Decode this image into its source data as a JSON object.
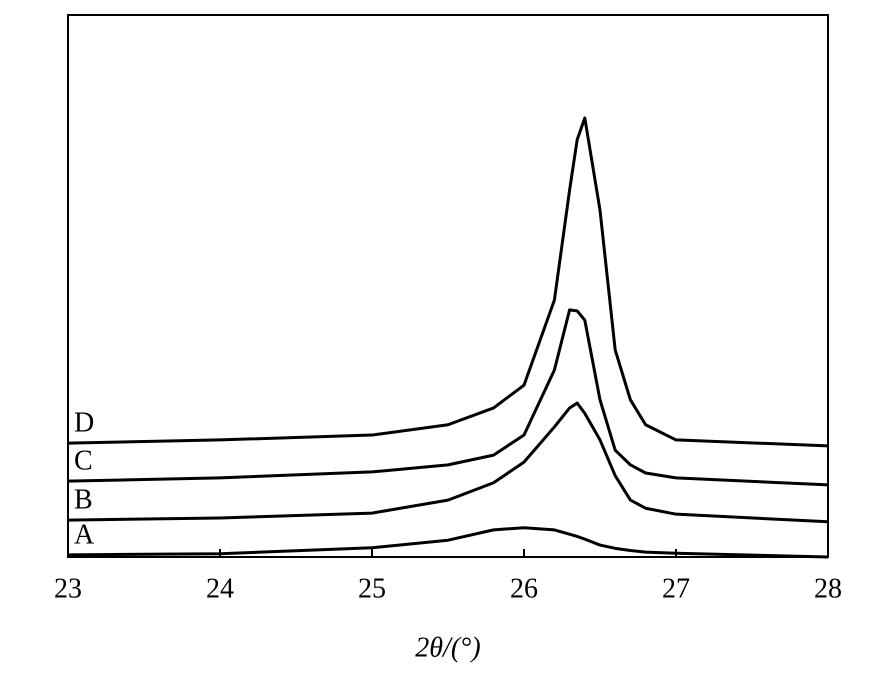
{
  "chart_data": {
    "type": "line",
    "x_label": "2θ/(°)",
    "x": [
      23,
      24,
      25,
      25.5,
      25.8,
      26,
      26.2,
      26.3,
      26.35,
      26.4,
      26.5,
      26.6,
      26.7,
      26.8,
      27,
      28
    ],
    "series": [
      {
        "name": "A",
        "color": "#000000",
        "values": [
          0.4,
          0.6,
          1.7,
          3.1,
          5,
          5.4,
          5,
          4.2,
          3.8,
          3.3,
          2.2,
          1.6,
          1.2,
          0.9,
          0.7,
          0
        ]
      },
      {
        "name": "B",
        "color": "#000000",
        "values": [
          6.8,
          7.2,
          8.1,
          10.5,
          13.7,
          17.5,
          24,
          27.5,
          28.4,
          26.5,
          21.6,
          15,
          10.5,
          9,
          7.9,
          6.5
        ]
      },
      {
        "name": "C",
        "color": "#000000",
        "values": [
          14,
          14.6,
          15.7,
          17,
          18.8,
          22.5,
          34.5,
          45.6,
          45.4,
          43.7,
          29,
          19.7,
          17,
          15.5,
          14.6,
          13.3
        ]
      },
      {
        "name": "D",
        "color": "#000000",
        "values": [
          21,
          21.6,
          22.5,
          24.4,
          27.5,
          31.7,
          47.4,
          67.7,
          77,
          81,
          64,
          38.2,
          29,
          24.4,
          21.6,
          20.5
        ]
      }
    ],
    "xlim": [
      23,
      28
    ],
    "xticks": [
      23,
      24,
      25,
      26,
      27,
      28
    ],
    "ylim": [
      0,
      100
    ]
  }
}
